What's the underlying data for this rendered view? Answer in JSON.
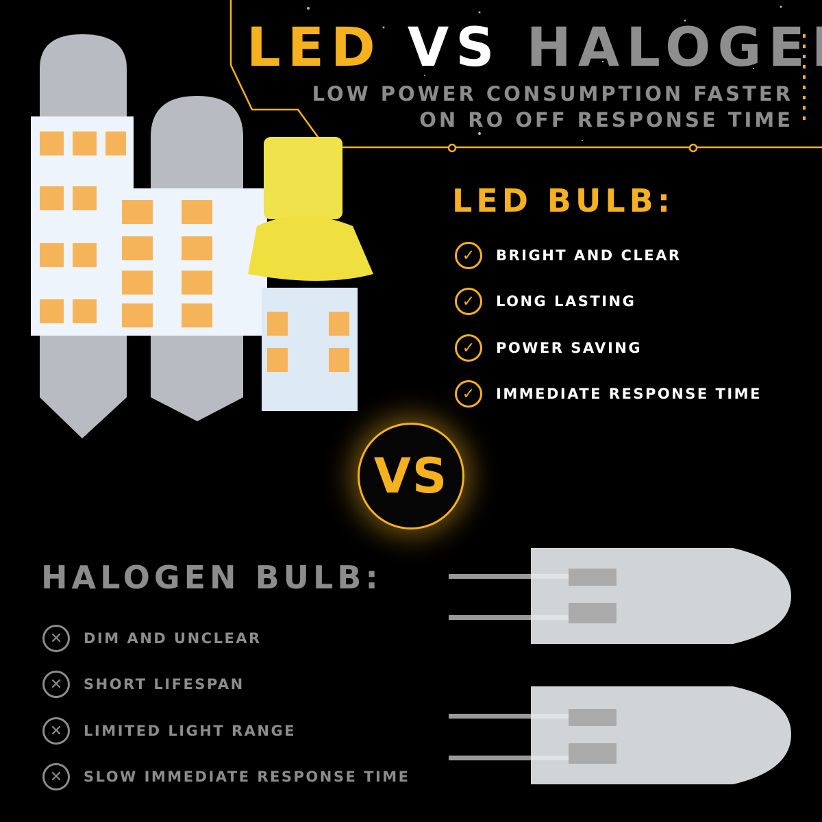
{
  "header": {
    "title_led": "LED",
    "title_vs": "VS",
    "title_halogen": "HALOGEN",
    "subtitle_line1": "LOW POWER CONSUMPTION FASTER",
    "subtitle_line2": "ON RO OFF RESPONSE TIME"
  },
  "led": {
    "heading": "LED BULB:",
    "icon": "check-circle-icon",
    "items": [
      "BRIGHT AND CLEAR",
      "LONG LASTING",
      "POWER SAVING",
      "IMMEDIATE RESPONSE TIME"
    ]
  },
  "vs_badge": "VS",
  "halogen": {
    "heading": "HALOGEN BULB:",
    "icon": "x-circle-icon",
    "items": [
      "DIM AND UNCLEAR",
      "SHORT LIFESPAN",
      "LIMITED LIGHT RANGE",
      "SLOW IMMEDIATE RESPONSE TIME"
    ]
  },
  "colors": {
    "accent": "#f5b21e",
    "gray": "#8c8c8c",
    "background": "#000000"
  }
}
